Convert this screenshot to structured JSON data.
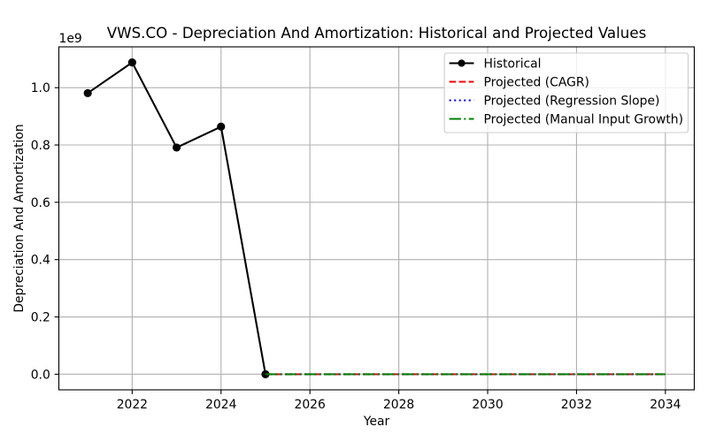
{
  "chart_data": {
    "type": "line",
    "title": "VWS.CO - Depreciation And Amortization: Historical and Projected Values",
    "xlabel": "Year",
    "ylabel": "Depreciation And Amortization",
    "y_offset_text": "1e9",
    "xlim": [
      2020.35,
      2034.65
    ],
    "ylim": [
      -54400000,
      1142400000
    ],
    "x_ticks": [
      2022,
      2024,
      2026,
      2028,
      2030,
      2032,
      2034
    ],
    "y_ticks": [
      0,
      200000000,
      400000000,
      600000000,
      800000000,
      1000000000
    ],
    "y_tick_labels": [
      "0.0",
      "0.2",
      "0.4",
      "0.6",
      "0.8",
      "1.0"
    ],
    "grid": true,
    "legend_position": "upper right",
    "series": [
      {
        "name": "Historical",
        "color": "#000000",
        "linestyle": "solid",
        "marker": "circle",
        "x": [
          2021,
          2022,
          2023,
          2024,
          2025
        ],
        "y": [
          981000000,
          1088000000,
          791000000,
          864000000,
          0
        ]
      },
      {
        "name": "Projected (CAGR)",
        "color": "#ff0000",
        "linestyle": "dashed",
        "marker": "none",
        "x": [
          2025,
          2026,
          2027,
          2028,
          2029,
          2030,
          2031,
          2032,
          2033,
          2034
        ],
        "y": [
          0,
          0,
          0,
          0,
          0,
          0,
          0,
          0,
          0,
          0
        ]
      },
      {
        "name": "Projected (Regression Slope)",
        "color": "#0000ff",
        "linestyle": "dotted",
        "marker": "none",
        "x": [
          2025,
          2026,
          2027,
          2028,
          2029,
          2030,
          2031,
          2032,
          2033,
          2034
        ],
        "y": [
          0,
          0,
          0,
          0,
          0,
          0,
          0,
          0,
          0,
          0
        ]
      },
      {
        "name": "Projected (Manual Input Growth)",
        "color": "#008000",
        "linestyle": "dashdot",
        "marker": "none",
        "x": [
          2025,
          2026,
          2027,
          2028,
          2029,
          2030,
          2031,
          2032,
          2033,
          2034
        ],
        "y": [
          0,
          0,
          0,
          0,
          0,
          0,
          0,
          0,
          0,
          0
        ]
      }
    ]
  }
}
